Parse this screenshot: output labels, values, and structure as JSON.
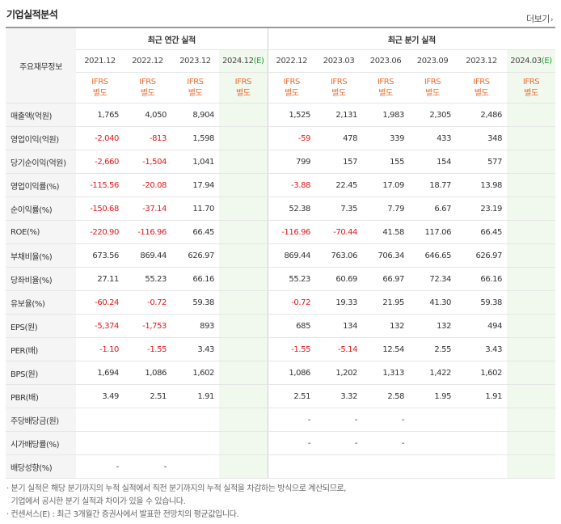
{
  "title": "기업실적분석",
  "more_label": "더보기",
  "label_header": "주요재무정보",
  "groups": {
    "annual": "최근 연간 실적",
    "quarter": "최근 분기 실적"
  },
  "annual_periods": [
    {
      "main": "2021.12",
      "e": ""
    },
    {
      "main": "2022.12",
      "e": ""
    },
    {
      "main": "2023.12",
      "e": ""
    },
    {
      "main": "2024.12",
      "e": "(E)"
    }
  ],
  "quarter_periods": [
    {
      "main": "2022.12",
      "e": ""
    },
    {
      "main": "2023.03",
      "e": ""
    },
    {
      "main": "2023.06",
      "e": ""
    },
    {
      "main": "2023.09",
      "e": ""
    },
    {
      "main": "2023.12",
      "e": ""
    },
    {
      "main": "2024.03",
      "e": "(E)"
    }
  ],
  "ifrs_line1": "IFRS",
  "ifrs_line2": "별도",
  "rows": [
    {
      "label": "매출액(억원)",
      "v": [
        "1,765",
        "4,050",
        "8,904",
        "",
        "1,525",
        "2,131",
        "1,983",
        "2,305",
        "2,486",
        ""
      ]
    },
    {
      "label": "영업이익(억원)",
      "v": [
        "-2,040",
        "-813",
        "1,598",
        "",
        "-59",
        "478",
        "339",
        "433",
        "348",
        ""
      ]
    },
    {
      "label": "당기순이익(억원)",
      "v": [
        "-2,660",
        "-1,504",
        "1,041",
        "",
        "799",
        "157",
        "155",
        "154",
        "577",
        ""
      ]
    },
    {
      "label": "영업이익률(%)",
      "v": [
        "-115.56",
        "-20.08",
        "17.94",
        "",
        "-3.88",
        "22.45",
        "17.09",
        "18.77",
        "13.98",
        ""
      ]
    },
    {
      "label": "순이익률(%)",
      "v": [
        "-150.68",
        "-37.14",
        "11.70",
        "",
        "52.38",
        "7.35",
        "7.79",
        "6.67",
        "23.19",
        ""
      ]
    },
    {
      "label": "ROE(%)",
      "v": [
        "-220.90",
        "-116.96",
        "66.45",
        "",
        "-116.96",
        "-70.44",
        "41.58",
        "117.06",
        "66.45",
        ""
      ]
    },
    {
      "label": "부채비율(%)",
      "v": [
        "673.56",
        "869.44",
        "626.97",
        "",
        "869.44",
        "763.06",
        "706.34",
        "646.65",
        "626.97",
        ""
      ]
    },
    {
      "label": "당좌비율(%)",
      "v": [
        "27.11",
        "55.23",
        "66.16",
        "",
        "55.23",
        "60.69",
        "66.97",
        "72.34",
        "66.16",
        ""
      ]
    },
    {
      "label": "유보율(%)",
      "v": [
        "-60.24",
        "-0.72",
        "59.38",
        "",
        "-0.72",
        "19.33",
        "21.95",
        "41.30",
        "59.38",
        ""
      ]
    },
    {
      "label": "EPS(원)",
      "v": [
        "-5,374",
        "-1,753",
        "893",
        "",
        "685",
        "134",
        "132",
        "132",
        "494",
        ""
      ]
    },
    {
      "label": "PER(배)",
      "v": [
        "-1.10",
        "-1.55",
        "3.43",
        "",
        "-1.55",
        "-5.14",
        "12.54",
        "2.55",
        "3.43",
        ""
      ]
    },
    {
      "label": "BPS(원)",
      "v": [
        "1,694",
        "1,086",
        "1,602",
        "",
        "1,086",
        "1,202",
        "1,313",
        "1,422",
        "1,602",
        ""
      ]
    },
    {
      "label": "PBR(배)",
      "v": [
        "3.49",
        "2.51",
        "1.91",
        "",
        "2.51",
        "3.32",
        "2.58",
        "1.95",
        "1.91",
        ""
      ]
    },
    {
      "label": "주당배당금(원)",
      "v": [
        "",
        "",
        "",
        "",
        "-",
        "-",
        "-",
        "",
        "",
        ""
      ]
    },
    {
      "label": "시가배당률(%)",
      "v": [
        "",
        "",
        "",
        "",
        "-",
        "-",
        "-",
        "",
        "",
        ""
      ]
    },
    {
      "label": "배당성향(%)",
      "v": [
        "-",
        "-",
        "",
        "",
        "",
        "",
        "",
        "",
        "",
        ""
      ]
    }
  ],
  "notes": [
    "· 분기 실적은 해당 분기까지의 누적 실적에서 직전 분기까지의 누적 실적을 차감하는 방식으로 계산되므로,",
    "  기업에서 공시한 분기 실적과 차이가 있을 수 있습니다.",
    "· 컨센서스(E) : 최근 3개월간 증권사에서 발표한 전망치의 평균값입니다."
  ],
  "colors": {
    "negative": "#e4161a",
    "ifrs": "#ee6b2c",
    "estimate_bg": "#f1f8ee",
    "label_bg": "#f5f5f5",
    "estimate_mark": "#1a9e2d"
  }
}
